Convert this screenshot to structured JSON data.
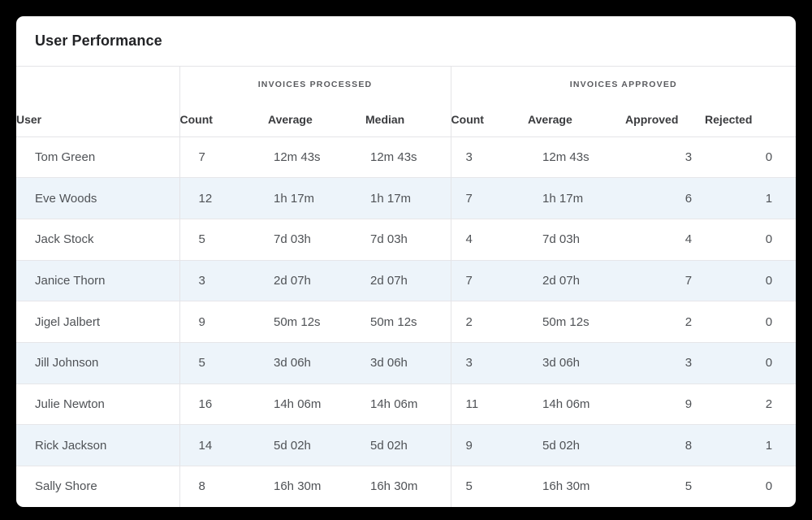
{
  "card": {
    "title": "User Performance"
  },
  "table": {
    "groups": [
      {
        "label": "INVOICES PROCESSED"
      },
      {
        "label": "INVOICES APPROVED"
      }
    ],
    "columns": [
      "User",
      "Count",
      "Average",
      "Median",
      "Count",
      "Average",
      "Approved",
      "Rejected"
    ],
    "rows": [
      [
        "Tom Green",
        "7",
        "12m 43s",
        "12m 43s",
        "3",
        "12m 43s",
        "3",
        "0"
      ],
      [
        "Eve Woods",
        "12",
        "1h 17m",
        "1h 17m",
        "7",
        "1h 17m",
        "6",
        "1"
      ],
      [
        "Jack Stock",
        "5",
        "7d 03h",
        "7d 03h",
        "4",
        "7d 03h",
        "4",
        "0"
      ],
      [
        "Janice Thorn",
        "3",
        "2d 07h",
        "2d 07h",
        "7",
        "2d 07h",
        "7",
        "0"
      ],
      [
        "Jigel Jalbert",
        "9",
        "50m 12s",
        "50m 12s",
        "2",
        "50m 12s",
        "2",
        "0"
      ],
      [
        "Jill Johnson",
        "5",
        "3d 06h",
        "3d 06h",
        "3",
        "3d 06h",
        "3",
        "0"
      ],
      [
        "Julie Newton",
        "16",
        "14h 06m",
        "14h 06m",
        "11",
        "14h 06m",
        "9",
        "2"
      ],
      [
        "Rick Jackson",
        "14",
        "5d 02h",
        "5d 02h",
        "9",
        "5d 02h",
        "8",
        "1"
      ],
      [
        "Sally Shore",
        "8",
        "16h 30m",
        "16h 30m",
        "5",
        "16h 30m",
        "5",
        "0"
      ]
    ]
  },
  "colors": {
    "page_background": "#000000",
    "card_background": "#ffffff",
    "stripe_row": "#edf4fa",
    "structure_border": "#e4e4e7",
    "row_border": "#e6e6e9",
    "title_text": "#222326",
    "column_header_text": "#3a3b3e",
    "group_header_text": "#5a5b5f",
    "cell_text": "#4f5256"
  }
}
